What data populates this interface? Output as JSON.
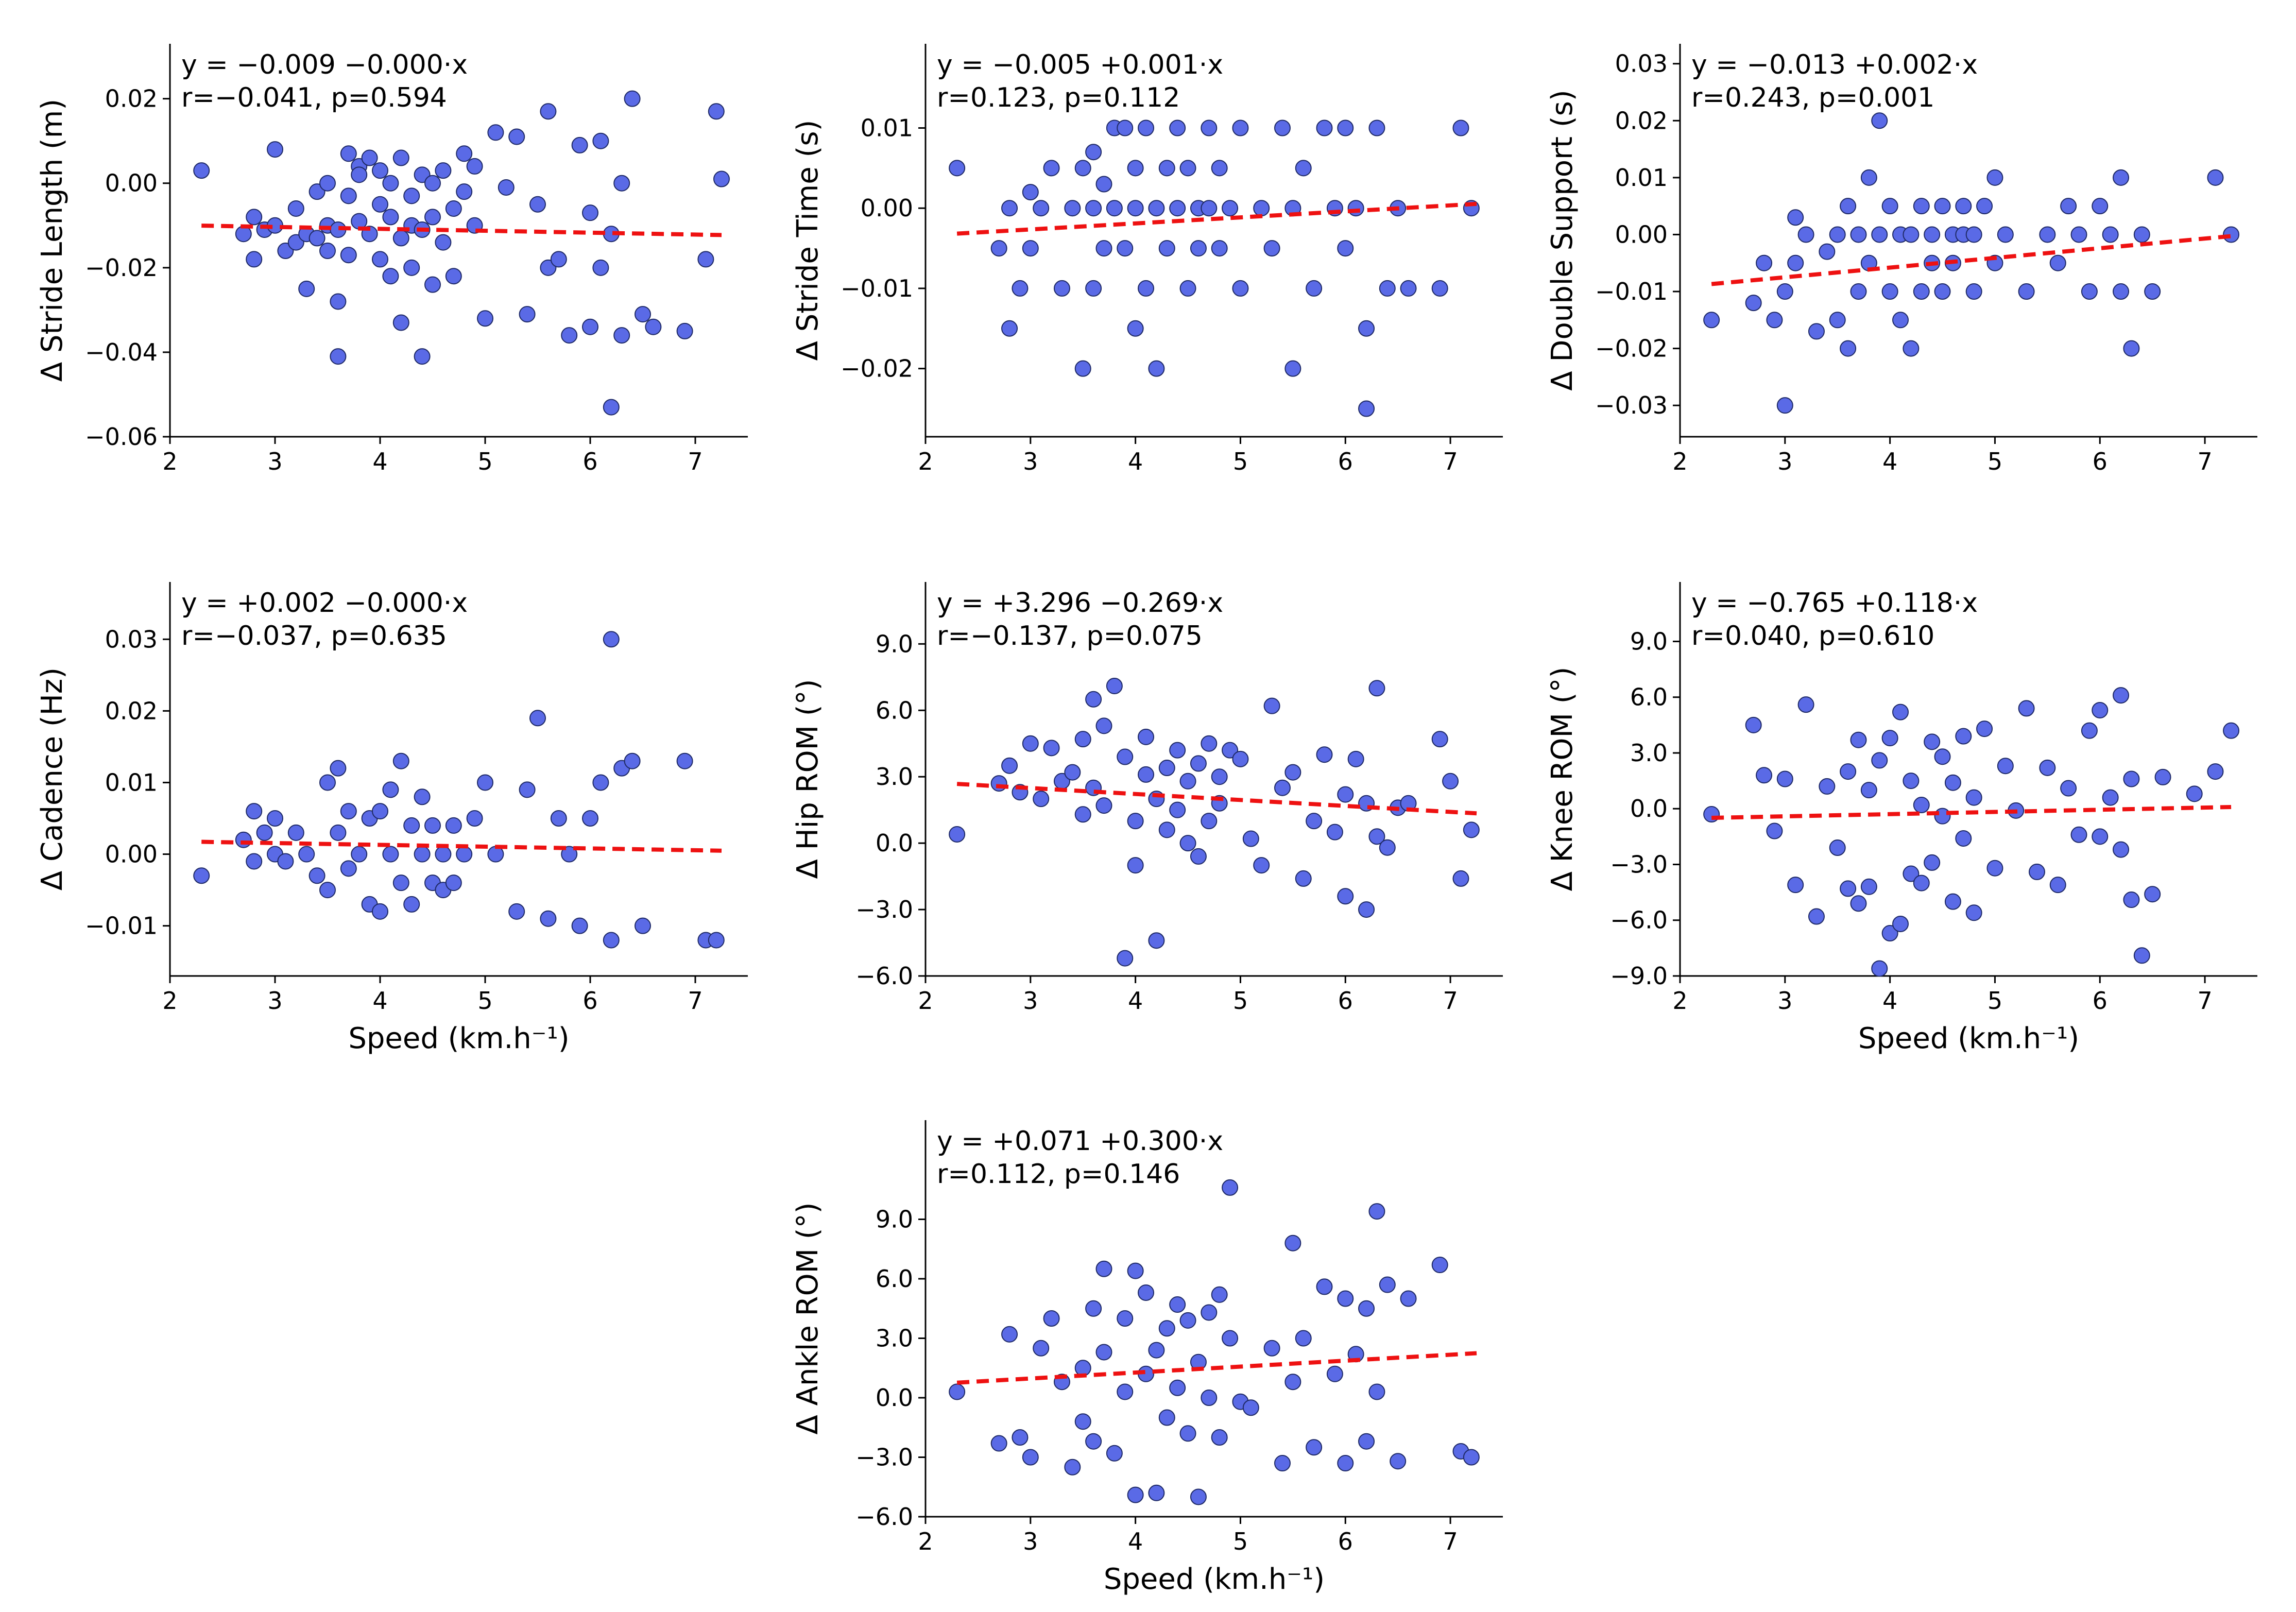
{
  "colors": {
    "points": "#5a6ae6",
    "point_edge": "#1f2a66",
    "fit_line": "#ee1111"
  },
  "chart_data": [
    {
      "type": "scatter",
      "ylabel": "Δ Stride Length (m)",
      "xlabel": "",
      "xlim": [
        2,
        7.5
      ],
      "ylim": [
        -0.06,
        0.033
      ],
      "xticks": [
        2,
        3,
        4,
        5,
        6,
        7
      ],
      "yticks": [
        -0.06,
        -0.04,
        -0.02,
        0.0,
        0.02
      ],
      "ytick_labels": [
        "−0.06",
        "−0.04",
        "−0.02",
        "0.00",
        "0.02"
      ],
      "equation": "y = −0.009 −0.000·x",
      "stats": "r=−0.041, p=0.594",
      "fit": {
        "intercept": -0.009,
        "slope": -0.00045,
        "x_range": [
          2.3,
          7.25
        ]
      },
      "x": [
        2.3,
        2.7,
        2.8,
        2.8,
        2.9,
        3.0,
        3.0,
        3.1,
        3.2,
        3.2,
        3.3,
        3.3,
        3.4,
        3.4,
        3.5,
        3.5,
        3.5,
        3.6,
        3.6,
        3.6,
        3.7,
        3.7,
        3.7,
        3.8,
        3.8,
        3.8,
        3.9,
        3.9,
        4.0,
        4.0,
        4.0,
        4.1,
        4.1,
        4.1,
        4.2,
        4.2,
        4.2,
        4.3,
        4.3,
        4.3,
        4.4,
        4.4,
        4.4,
        4.5,
        4.5,
        4.5,
        4.6,
        4.6,
        4.7,
        4.7,
        4.8,
        4.8,
        4.9,
        4.9,
        5.0,
        5.1,
        5.2,
        5.3,
        5.4,
        5.5,
        5.6,
        5.6,
        5.7,
        5.8,
        5.9,
        6.0,
        6.0,
        6.1,
        6.1,
        6.2,
        6.2,
        6.3,
        6.3,
        6.4,
        6.5,
        6.6,
        6.9,
        7.1,
        7.2,
        7.25
      ],
      "y": [
        0.003,
        -0.012,
        -0.018,
        -0.008,
        -0.011,
        0.008,
        -0.01,
        -0.016,
        -0.014,
        -0.006,
        -0.025,
        -0.012,
        -0.002,
        -0.013,
        -0.01,
        0.0,
        -0.016,
        -0.041,
        -0.028,
        -0.011,
        0.007,
        -0.003,
        -0.017,
        0.004,
        -0.009,
        0.002,
        -0.012,
        0.006,
        -0.018,
        -0.005,
        0.003,
        -0.008,
        -0.022,
        0.0,
        -0.013,
        0.006,
        -0.033,
        -0.01,
        -0.003,
        -0.02,
        -0.011,
        0.002,
        -0.041,
        -0.008,
        0.0,
        -0.024,
        -0.014,
        0.003,
        -0.006,
        -0.022,
        -0.002,
        0.007,
        -0.01,
        0.004,
        -0.032,
        0.012,
        -0.001,
        0.011,
        -0.031,
        -0.005,
        0.017,
        -0.02,
        -0.018,
        -0.036,
        0.009,
        -0.007,
        -0.034,
        -0.02,
        0.01,
        -0.053,
        -0.012,
        -0.036,
        0.0,
        0.02,
        -0.031,
        -0.034,
        -0.035,
        -0.018,
        0.017,
        0.001
      ]
    },
    {
      "type": "scatter",
      "ylabel": "Δ Stride Time (s)",
      "xlabel": "",
      "xlim": [
        2,
        7.5
      ],
      "ylim": [
        -0.0285,
        0.0205
      ],
      "xticks": [
        2,
        3,
        4,
        5,
        6,
        7
      ],
      "yticks": [
        -0.02,
        -0.01,
        0.0,
        0.01
      ],
      "ytick_labels": [
        "−0.02",
        "−0.01",
        "0.00",
        "0.01"
      ],
      "equation": "y = −0.005 +0.001·x",
      "stats": "r=0.123, p=0.112",
      "fit": {
        "intercept": -0.0049,
        "slope": 0.00075,
        "x_range": [
          2.3,
          7.25
        ]
      },
      "x": [
        2.3,
        2.7,
        2.8,
        2.8,
        2.9,
        3.0,
        3.0,
        3.1,
        3.2,
        3.3,
        3.4,
        3.5,
        3.5,
        3.6,
        3.6,
        3.6,
        3.7,
        3.7,
        3.8,
        3.8,
        3.9,
        3.9,
        4.0,
        4.0,
        4.0,
        4.1,
        4.1,
        4.2,
        4.2,
        4.3,
        4.3,
        4.4,
        4.4,
        4.5,
        4.5,
        4.6,
        4.6,
        4.7,
        4.7,
        4.8,
        4.8,
        4.9,
        5.0,
        5.0,
        5.2,
        5.3,
        5.4,
        5.5,
        5.5,
        5.6,
        5.7,
        5.8,
        5.9,
        6.0,
        6.0,
        6.1,
        6.2,
        6.2,
        6.3,
        6.4,
        6.5,
        6.6,
        6.9,
        7.1,
        7.2
      ],
      "y": [
        0.005,
        -0.005,
        -0.015,
        0.0,
        -0.01,
        0.002,
        -0.005,
        0.0,
        0.005,
        -0.01,
        0.0,
        0.005,
        -0.02,
        0.007,
        0.0,
        -0.01,
        0.003,
        -0.005,
        0.01,
        0.0,
        -0.005,
        0.01,
        0.005,
        -0.015,
        0.0,
        0.01,
        -0.01,
        0.0,
        -0.02,
        0.005,
        -0.005,
        0.01,
        0.0,
        -0.01,
        0.005,
        0.0,
        -0.005,
        0.01,
        0.0,
        -0.005,
        0.005,
        0.0,
        0.01,
        -0.01,
        0.0,
        -0.005,
        0.01,
        -0.02,
        0.0,
        0.005,
        -0.01,
        0.01,
        0.0,
        -0.005,
        0.01,
        0.0,
        -0.015,
        -0.025,
        0.01,
        -0.01,
        0.0,
        -0.01,
        -0.01,
        0.01,
        0.0
      ]
    },
    {
      "type": "scatter",
      "ylabel": "Δ Double Support (s)",
      "xlabel": "",
      "xlim": [
        2,
        7.5
      ],
      "ylim": [
        -0.0355,
        0.0335
      ],
      "xticks": [
        2,
        3,
        4,
        5,
        6,
        7
      ],
      "yticks": [
        -0.03,
        -0.02,
        -0.01,
        0.0,
        0.01,
        0.02,
        0.03
      ],
      "ytick_labels": [
        "−0.03",
        "−0.02",
        "−0.01",
        "0.00",
        "0.01",
        "0.02",
        "0.03"
      ],
      "equation": "y = −0.013 +0.002·x",
      "stats": "r=0.243, p=0.001",
      "fit": {
        "intercept": -0.0126,
        "slope": 0.0017,
        "x_range": [
          2.3,
          7.25
        ]
      },
      "x": [
        2.3,
        2.7,
        2.8,
        2.9,
        3.0,
        3.0,
        3.1,
        3.1,
        3.2,
        3.3,
        3.4,
        3.5,
        3.5,
        3.6,
        3.6,
        3.7,
        3.7,
        3.8,
        3.8,
        3.9,
        3.9,
        4.0,
        4.0,
        4.1,
        4.1,
        4.2,
        4.2,
        4.3,
        4.3,
        4.4,
        4.4,
        4.5,
        4.5,
        4.6,
        4.6,
        4.7,
        4.7,
        4.8,
        4.8,
        4.9,
        5.0,
        5.0,
        5.1,
        5.3,
        5.5,
        5.6,
        5.7,
        5.8,
        5.9,
        6.0,
        6.1,
        6.2,
        6.2,
        6.3,
        6.4,
        6.5,
        7.1,
        7.25
      ],
      "y": [
        -0.015,
        -0.012,
        -0.005,
        -0.015,
        -0.01,
        -0.03,
        0.003,
        -0.005,
        0.0,
        -0.017,
        -0.003,
        -0.015,
        0.0,
        -0.02,
        0.005,
        -0.01,
        0.0,
        0.01,
        -0.005,
        0.02,
        0.0,
        -0.01,
        0.005,
        0.0,
        -0.015,
        -0.02,
        0.0,
        -0.01,
        0.005,
        0.0,
        -0.005,
        -0.01,
        0.005,
        0.0,
        -0.005,
        0.0,
        0.005,
        -0.01,
        0.0,
        0.005,
        0.01,
        -0.005,
        0.0,
        -0.01,
        0.0,
        -0.005,
        0.005,
        0.0,
        -0.01,
        0.005,
        0.0,
        -0.01,
        0.01,
        -0.02,
        0.0,
        -0.01,
        0.01,
        0.0
      ]
    },
    {
      "type": "scatter",
      "ylabel": "Δ Cadence (Hz)",
      "xlabel": "Speed (km.h⁻¹)",
      "xlim": [
        2,
        7.5
      ],
      "ylim": [
        -0.017,
        0.038
      ],
      "xticks": [
        2,
        3,
        4,
        5,
        6,
        7
      ],
      "yticks": [
        -0.01,
        0.0,
        0.01,
        0.02,
        0.03
      ],
      "ytick_labels": [
        "−0.01",
        "0.00",
        "0.01",
        "0.02",
        "0.03"
      ],
      "equation": "y = +0.002 −0.000·x",
      "stats": "r=−0.037, p=0.635",
      "fit": {
        "intercept": 0.0023,
        "slope": -0.00025,
        "x_range": [
          2.3,
          7.25
        ]
      },
      "x": [
        2.3,
        2.7,
        2.8,
        2.8,
        2.9,
        3.0,
        3.0,
        3.1,
        3.2,
        3.3,
        3.4,
        3.5,
        3.5,
        3.6,
        3.6,
        3.7,
        3.7,
        3.8,
        3.9,
        3.9,
        4.0,
        4.0,
        4.1,
        4.1,
        4.2,
        4.2,
        4.3,
        4.3,
        4.4,
        4.4,
        4.5,
        4.5,
        4.6,
        4.6,
        4.7,
        4.7,
        4.8,
        4.9,
        5.0,
        5.1,
        5.3,
        5.4,
        5.5,
        5.6,
        5.7,
        5.8,
        5.9,
        6.0,
        6.1,
        6.2,
        6.2,
        6.3,
        6.4,
        6.5,
        6.9,
        7.1,
        7.2
      ],
      "y": [
        -0.003,
        0.002,
        0.006,
        -0.001,
        0.003,
        0.005,
        0.0,
        -0.001,
        0.003,
        0.0,
        -0.003,
        0.01,
        -0.005,
        0.012,
        0.003,
        0.006,
        -0.002,
        0.0,
        0.005,
        -0.007,
        0.006,
        -0.008,
        0.009,
        0.0,
        0.013,
        -0.004,
        0.004,
        -0.007,
        0.008,
        0.0,
        -0.004,
        0.004,
        0.0,
        -0.005,
        0.004,
        -0.004,
        0.0,
        0.005,
        0.01,
        0.0,
        -0.008,
        0.009,
        0.019,
        -0.009,
        0.005,
        0.0,
        -0.01,
        0.005,
        0.01,
        0.03,
        -0.012,
        0.012,
        0.013,
        -0.01,
        0.013,
        -0.012,
        -0.012
      ]
    },
    {
      "type": "scatter",
      "ylabel": "Δ Hip ROM (°)",
      "xlabel": "",
      "xlim": [
        2,
        7.5
      ],
      "ylim": [
        -6.0,
        11.8
      ],
      "xticks": [
        2,
        3,
        4,
        5,
        6,
        7
      ],
      "yticks": [
        -6.0,
        -3.0,
        0.0,
        3.0,
        6.0,
        9.0
      ],
      "ytick_labels": [
        "−6.0",
        "−3.0",
        "0.0",
        "3.0",
        "6.0",
        "9.0"
      ],
      "equation": "y = +3.296 −0.269·x",
      "stats": "r=−0.137, p=0.075",
      "fit": {
        "intercept": 3.296,
        "slope": -0.269,
        "x_range": [
          2.3,
          7.25
        ]
      },
      "x": [
        2.3,
        2.7,
        2.8,
        2.9,
        3.0,
        3.1,
        3.2,
        3.3,
        3.4,
        3.5,
        3.5,
        3.6,
        3.6,
        3.7,
        3.7,
        3.8,
        3.9,
        3.9,
        4.0,
        4.0,
        4.1,
        4.1,
        4.2,
        4.2,
        4.3,
        4.3,
        4.4,
        4.4,
        4.5,
        4.5,
        4.6,
        4.6,
        4.7,
        4.7,
        4.8,
        4.8,
        4.9,
        5.0,
        5.1,
        5.2,
        5.3,
        5.4,
        5.5,
        5.6,
        5.7,
        5.8,
        5.9,
        6.0,
        6.0,
        6.1,
        6.2,
        6.2,
        6.3,
        6.3,
        6.4,
        6.5,
        6.6,
        6.9,
        7.0,
        7.1,
        7.2
      ],
      "y": [
        0.4,
        2.7,
        3.5,
        2.3,
        4.5,
        2.0,
        4.3,
        2.8,
        3.2,
        1.3,
        4.7,
        6.5,
        2.5,
        5.3,
        1.7,
        7.1,
        3.9,
        -5.2,
        1.0,
        -1.0,
        3.1,
        4.8,
        -4.4,
        2.0,
        0.6,
        3.4,
        1.5,
        4.2,
        0.0,
        2.8,
        3.6,
        -0.6,
        4.5,
        1.0,
        3.0,
        1.8,
        4.2,
        3.8,
        0.2,
        -1.0,
        6.2,
        2.5,
        3.2,
        -1.6,
        1.0,
        4.0,
        0.5,
        2.2,
        -2.4,
        3.8,
        1.8,
        -3.0,
        7.0,
        0.3,
        -0.2,
        1.6,
        1.8,
        4.7,
        2.8,
        -1.6,
        0.6
      ]
    },
    {
      "type": "scatter",
      "ylabel": "Δ Knee ROM (°)",
      "xlabel": "Speed (km.h⁻¹)",
      "xlim": [
        2,
        7.5
      ],
      "ylim": [
        -9.0,
        12.2
      ],
      "xticks": [
        2,
        3,
        4,
        5,
        6,
        7
      ],
      "yticks": [
        -9.0,
        -6.0,
        -3.0,
        0.0,
        3.0,
        6.0,
        9.0
      ],
      "ytick_labels": [
        "−9.0",
        "−6.0",
        "−3.0",
        "0.0",
        "3.0",
        "6.0",
        "9.0"
      ],
      "equation": "y = −0.765 +0.118·x",
      "stats": "r=0.040, p=0.610",
      "fit": {
        "intercept": -0.765,
        "slope": 0.118,
        "x_range": [
          2.3,
          7.25
        ]
      },
      "x": [
        2.3,
        2.7,
        2.8,
        2.9,
        3.0,
        3.1,
        3.2,
        3.3,
        3.4,
        3.5,
        3.6,
        3.6,
        3.7,
        3.7,
        3.8,
        3.8,
        3.9,
        3.9,
        4.0,
        4.0,
        4.1,
        4.1,
        4.2,
        4.2,
        4.3,
        4.3,
        4.4,
        4.4,
        4.5,
        4.5,
        4.6,
        4.6,
        4.7,
        4.7,
        4.8,
        4.8,
        4.9,
        5.0,
        5.1,
        5.2,
        5.3,
        5.4,
        5.5,
        5.6,
        5.7,
        5.8,
        5.9,
        6.0,
        6.0,
        6.1,
        6.2,
        6.2,
        6.3,
        6.3,
        6.4,
        6.5,
        6.6,
        6.9,
        7.1,
        7.25
      ],
      "y": [
        -0.3,
        4.5,
        1.8,
        -1.2,
        1.6,
        -4.1,
        5.6,
        -5.8,
        1.2,
        -2.1,
        2.0,
        -4.3,
        3.7,
        -5.1,
        -4.2,
        1.0,
        -8.6,
        2.6,
        -6.7,
        3.8,
        -6.2,
        5.2,
        -3.5,
        1.5,
        0.2,
        -4.0,
        3.6,
        -2.9,
        -0.4,
        2.8,
        -5.0,
        1.4,
        -1.6,
        3.9,
        -5.6,
        0.6,
        4.3,
        -3.2,
        2.3,
        -0.1,
        5.4,
        -3.4,
        2.2,
        -4.1,
        1.1,
        -1.4,
        4.2,
        5.3,
        -1.5,
        0.6,
        6.1,
        -2.2,
        -4.9,
        1.6,
        -7.9,
        -4.6,
        1.7,
        0.8,
        2.0,
        4.2
      ]
    },
    {
      "type": "scatter",
      "ylabel": "Δ Ankle ROM (°)",
      "xlabel": "Speed (km.h⁻¹)",
      "xlim": [
        2,
        7.5
      ],
      "ylim": [
        -6.0,
        14.0
      ],
      "xticks": [
        2,
        3,
        4,
        5,
        6,
        7
      ],
      "yticks": [
        -6.0,
        -3.0,
        0.0,
        3.0,
        6.0,
        9.0
      ],
      "ytick_labels": [
        "−6.0",
        "−3.0",
        "0.0",
        "3.0",
        "6.0",
        "9.0"
      ],
      "equation": "y = +0.071 +0.300·x",
      "stats": "r=0.112, p=0.146",
      "fit": {
        "intercept": 0.071,
        "slope": 0.3,
        "x_range": [
          2.3,
          7.25
        ]
      },
      "x": [
        2.3,
        2.7,
        2.8,
        2.9,
        3.0,
        3.1,
        3.2,
        3.3,
        3.4,
        3.5,
        3.5,
        3.6,
        3.6,
        3.7,
        3.7,
        3.8,
        3.9,
        3.9,
        4.0,
        4.0,
        4.1,
        4.1,
        4.2,
        4.2,
        4.3,
        4.3,
        4.4,
        4.4,
        4.5,
        4.5,
        4.6,
        4.6,
        4.7,
        4.7,
        4.8,
        4.8,
        4.9,
        4.9,
        5.0,
        5.1,
        5.3,
        5.4,
        5.5,
        5.5,
        5.6,
        5.7,
        5.8,
        5.9,
        6.0,
        6.0,
        6.1,
        6.2,
        6.2,
        6.3,
        6.3,
        6.4,
        6.5,
        6.6,
        6.9,
        7.1,
        7.2
      ],
      "y": [
        0.3,
        -2.3,
        3.2,
        -2.0,
        -3.0,
        2.5,
        4.0,
        0.8,
        -3.5,
        1.5,
        -1.2,
        4.5,
        -2.2,
        6.5,
        2.3,
        -2.8,
        4.0,
        0.3,
        6.4,
        -4.9,
        1.2,
        5.3,
        -4.8,
        2.4,
        3.5,
        -1.0,
        4.7,
        0.5,
        -1.8,
        3.9,
        1.8,
        -5.0,
        4.3,
        0.0,
        -2.0,
        5.2,
        3.0,
        10.6,
        -0.2,
        -0.5,
        2.5,
        -3.3,
        0.8,
        7.8,
        3.0,
        -2.5,
        5.6,
        1.2,
        -3.3,
        5.0,
        2.2,
        -2.2,
        4.5,
        9.4,
        0.3,
        5.7,
        -3.2,
        5.0,
        6.7,
        -2.7,
        -3.0
      ]
    }
  ]
}
